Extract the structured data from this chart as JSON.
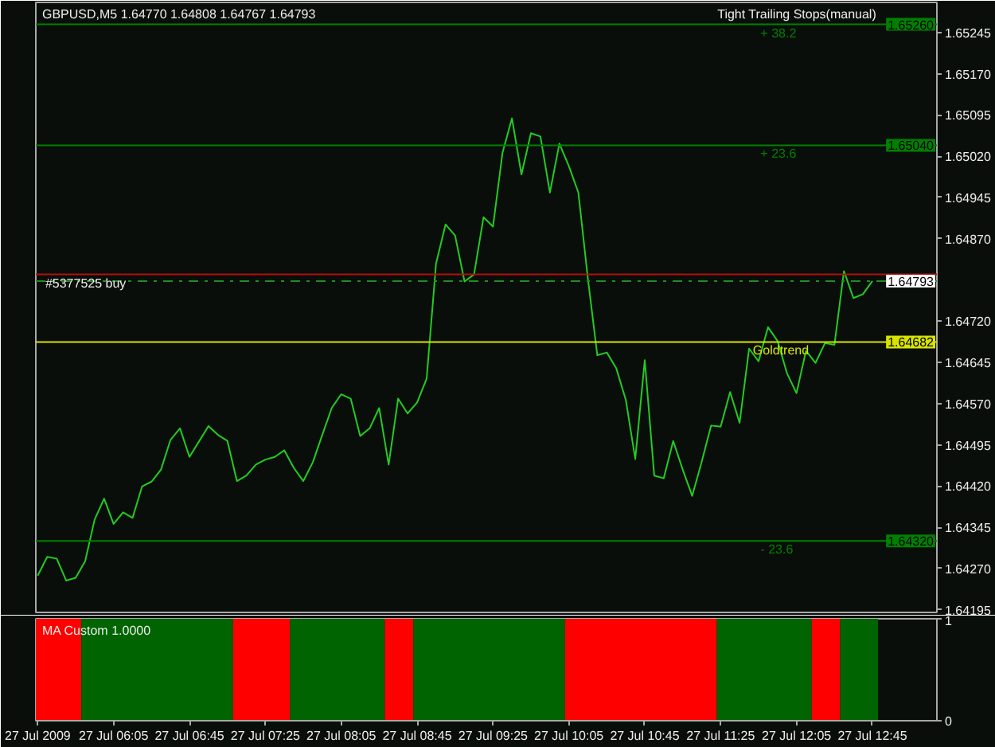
{
  "chart_data": [
    {
      "type": "line",
      "title": "GBPUSD,M5 1.64770 1.64808 1.64767 1.64793",
      "subtitle": "Tight Trailing Stops(manual)",
      "color": "#22cc22",
      "x": [
        "2009-07-27T05:25",
        "2009-07-27T05:30",
        "2009-07-27T05:35",
        "2009-07-27T05:40",
        "2009-07-27T05:45",
        "2009-07-27T05:50",
        "2009-07-27T05:55",
        "2009-07-27T06:00",
        "2009-07-27T06:05",
        "2009-07-27T06:10",
        "2009-07-27T06:15",
        "2009-07-27T06:20",
        "2009-07-27T06:25",
        "2009-07-27T06:30",
        "2009-07-27T06:35",
        "2009-07-27T06:40",
        "2009-07-27T06:45",
        "2009-07-27T06:50",
        "2009-07-27T06:55",
        "2009-07-27T07:00",
        "2009-07-27T07:05",
        "2009-07-27T07:10",
        "2009-07-27T07:15",
        "2009-07-27T07:20",
        "2009-07-27T07:25",
        "2009-07-27T07:30",
        "2009-07-27T07:35",
        "2009-07-27T07:40",
        "2009-07-27T07:45",
        "2009-07-27T07:50",
        "2009-07-27T07:55",
        "2009-07-27T08:00",
        "2009-07-27T08:05",
        "2009-07-27T08:10",
        "2009-07-27T08:15",
        "2009-07-27T08:20",
        "2009-07-27T08:25",
        "2009-07-27T08:30",
        "2009-07-27T08:35",
        "2009-07-27T08:40",
        "2009-07-27T08:45",
        "2009-07-27T08:50",
        "2009-07-27T08:55",
        "2009-07-27T09:00",
        "2009-07-27T09:05",
        "2009-07-27T09:10",
        "2009-07-27T09:15",
        "2009-07-27T09:20",
        "2009-07-27T09:25",
        "2009-07-27T09:30",
        "2009-07-27T09:35",
        "2009-07-27T09:40",
        "2009-07-27T09:45",
        "2009-07-27T09:50",
        "2009-07-27T09:55",
        "2009-07-27T10:00",
        "2009-07-27T10:05",
        "2009-07-27T10:10",
        "2009-07-27T10:15",
        "2009-07-27T10:20",
        "2009-07-27T10:25",
        "2009-07-27T10:30",
        "2009-07-27T10:35",
        "2009-07-27T10:40",
        "2009-07-27T10:45",
        "2009-07-27T10:50",
        "2009-07-27T10:55",
        "2009-07-27T11:00",
        "2009-07-27T11:05",
        "2009-07-27T11:10",
        "2009-07-27T11:15",
        "2009-07-27T11:20",
        "2009-07-27T11:25",
        "2009-07-27T11:30",
        "2009-07-27T11:35",
        "2009-07-27T11:40",
        "2009-07-27T11:45",
        "2009-07-27T11:50",
        "2009-07-27T11:55",
        "2009-07-27T12:00",
        "2009-07-27T12:05",
        "2009-07-27T12:10",
        "2009-07-27T12:15",
        "2009-07-27T12:20",
        "2009-07-27T12:25",
        "2009-07-27T12:30",
        "2009-07-27T12:35",
        "2009-07-27T12:40",
        "2009-07-27T12:45"
      ],
      "values": [
        1.64257,
        1.64291,
        1.64288,
        1.64248,
        1.64253,
        1.64283,
        1.64359,
        1.64397,
        1.64351,
        1.64372,
        1.64362,
        1.64419,
        1.64428,
        1.6445,
        1.64504,
        1.64525,
        1.64473,
        1.64501,
        1.64529,
        1.64513,
        1.64502,
        1.64429,
        1.64439,
        1.64459,
        1.64468,
        1.64473,
        1.64485,
        1.64453,
        1.64429,
        1.64463,
        1.64513,
        1.64562,
        1.64587,
        1.64579,
        1.64511,
        1.64525,
        1.64562,
        1.64459,
        1.64579,
        1.64552,
        1.64572,
        1.64615,
        1.64825,
        1.64896,
        1.64876,
        1.64792,
        1.64805,
        1.64909,
        1.64892,
        1.65026,
        1.65089,
        1.64987,
        1.65062,
        1.65056,
        1.64954,
        1.65043,
        1.65002,
        1.64954,
        1.64798,
        1.64658,
        1.64663,
        1.64634,
        1.64577,
        1.64469,
        1.64649,
        1.64439,
        1.64434,
        1.64502,
        1.6445,
        1.64402,
        1.64464,
        1.6453,
        1.64528,
        1.64591,
        1.64535,
        1.6467,
        1.64647,
        1.64709,
        1.64684,
        1.64625,
        1.64589,
        1.64666,
        1.64644,
        1.6468,
        1.64677,
        1.64811,
        1.64762,
        1.64769,
        1.64793
      ],
      "xlim": [
        "2009-07-27T05:24",
        "2009-07-27T13:19"
      ],
      "ylim": [
        1.6419,
        1.653
      ],
      "yticks": [
        1.65245,
        {
          "value": 1.6517,
          "label": "1.65170"
        },
        1.65095,
        {
          "value": 1.6502,
          "label": "1.65020"
        },
        1.64945,
        {
          "value": 1.6487,
          "label": "1.64870"
        },
        {
          "value": 1.6472,
          "label": "1.64720"
        },
        1.64645,
        {
          "value": 1.6457,
          "label": "1.64570"
        },
        1.64495,
        {
          "value": 1.6442,
          "label": "1.64420"
        },
        1.64345,
        {
          "value": 1.6427,
          "label": "1.64270"
        },
        1.64195
      ],
      "tick_labels": "y",
      "ref_lines": [
        {
          "axis": "y",
          "value": 1.6526,
          "label": "1.65260",
          "color": "#008000"
        },
        {
          "axis": "y",
          "value": 1.6504,
          "label": "1.65040",
          "color": "#008000"
        },
        {
          "axis": "y",
          "value": 1.64805,
          "color": "#b01010"
        },
        {
          "axis": "y",
          "value": 1.64793,
          "label": "1.64793",
          "color": "#1f8f1f",
          "line_style": "dashdot"
        },
        {
          "axis": "y",
          "value": 1.64682,
          "label": "1.64682",
          "color": "#d8e400"
        },
        {
          "axis": "y",
          "value": 1.6432,
          "label": "1.64320",
          "color": "#008000"
        }
      ],
      "annotations": [
        {
          "text": "+ 38.2",
          "x": "2009-07-27T11:46",
          "y": 1.6526
        },
        {
          "text": "+ 23.6",
          "x": "2009-07-27T11:46",
          "y": 1.6504
        },
        {
          "text": "#5377525 buy",
          "x": "2009-07-27T05:29",
          "y": 1.64805
        },
        {
          "text": "Goldtrend",
          "x": "2009-07-27T11:42",
          "y": 1.64682
        },
        {
          "text": "- 23.6",
          "x": "2009-07-27T11:46",
          "y": 1.6432
        }
      ]
    },
    {
      "type": "histogram",
      "title": "MA Custom 1.0000",
      "bins": [
        "2009-07-27T05:24",
        "2009-07-27T05:48",
        "2009-07-27T07:08",
        "2009-07-27T07:38",
        "2009-07-27T08:28",
        "2009-07-27T08:43",
        "2009-07-27T10:03",
        "2009-07-27T11:23",
        "2009-07-27T12:13",
        "2009-07-27T12:28",
        "2009-07-27T12:48"
      ],
      "values": [
        1,
        1,
        1,
        1,
        1,
        1,
        1,
        1,
        1,
        1
      ],
      "colors": [
        "#ff0000",
        "#006400",
        "#ff0000",
        "#006400",
        "#ff0000",
        "#006400",
        "#ff0000",
        "#006400",
        "#ff0000",
        "#006400"
      ],
      "xlim": [
        "2009-07-27T05:24",
        "2009-07-27T13:19"
      ],
      "xticks": [
        {
          "value": "2009-07-27T05:25",
          "label": "27 Jul 2009"
        },
        {
          "value": "2009-07-27T06:05",
          "label": "27 Jul 06:05"
        },
        {
          "value": "2009-07-27T06:45",
          "label": "27 Jul 06:45"
        },
        {
          "value": "2009-07-27T07:25",
          "label": "27 Jul 07:25"
        },
        {
          "value": "2009-07-27T08:05",
          "label": "27 Jul 08:05"
        },
        {
          "value": "2009-07-27T08:45",
          "label": "27 Jul 08:45"
        },
        {
          "value": "2009-07-27T09:25",
          "label": "27 Jul 09:25"
        },
        {
          "value": "2009-07-27T10:05",
          "label": "27 Jul 10:05"
        },
        {
          "value": "2009-07-27T10:45",
          "label": "27 Jul 10:45"
        },
        {
          "value": "2009-07-27T11:25",
          "label": "27 Jul 11:25"
        },
        {
          "value": "2009-07-27T12:05",
          "label": "27 Jul 12:05"
        },
        {
          "value": "2009-07-27T12:45",
          "label": "27 Jul 12:45"
        }
      ],
      "ylim": [
        0,
        1
      ],
      "yticks": [
        0,
        1
      ]
    }
  ]
}
